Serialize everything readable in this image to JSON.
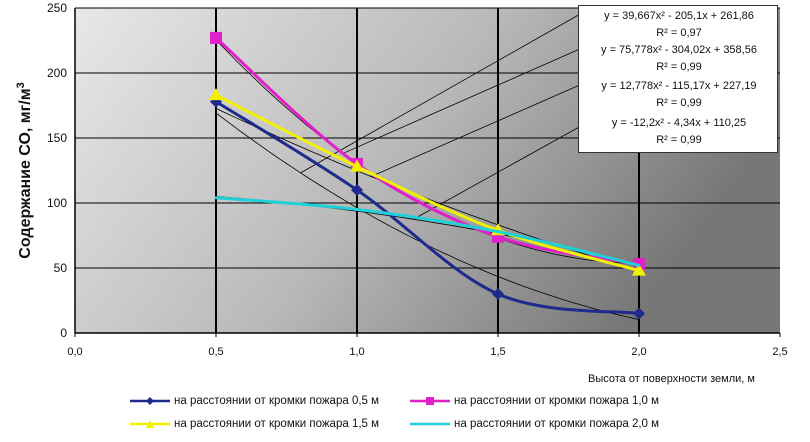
{
  "chart_data": {
    "type": "line",
    "title": "",
    "ylabel": "Содержание СО, мг/м",
    "ylabel_superscript": "3",
    "xlabel": "Высота от поверхности земли, м",
    "xlim": [
      0,
      2.5
    ],
    "ylim": [
      0,
      250
    ],
    "x_ticks": [
      "0,0",
      "0,5",
      "1,0",
      "1,5",
      "2,0",
      "2,5"
    ],
    "x_tick_values": [
      0,
      0.5,
      1.0,
      1.5,
      2.0,
      2.5
    ],
    "y_ticks": [
      "0",
      "50",
      "100",
      "150",
      "200",
      "250"
    ],
    "y_tick_values": [
      0,
      50,
      100,
      150,
      200,
      250
    ],
    "grid": true,
    "legend_position": "bottom",
    "series": [
      {
        "name": "на расстоянии от кромки пожара 0,5 м",
        "x": [
          0.5,
          1.0,
          1.5,
          2.0
        ],
        "values": [
          178,
          110,
          30,
          15
        ],
        "color": "#1f2a8c",
        "marker": "diamond"
      },
      {
        "name": "на расстоянии от кромки пожара 1,0 м",
        "x": [
          0.5,
          1.0,
          1.5,
          2.0
        ],
        "values": [
          227,
          130,
          74,
          53
        ],
        "color": "#e020c8",
        "marker": "square"
      },
      {
        "name": "на расстоянии от кромки пожара 1,5 м",
        "x": [
          0.5,
          1.0,
          1.5,
          2.0
        ],
        "values": [
          183,
          128,
          79,
          48
        ],
        "color": "#f2f200",
        "marker": "triangle"
      },
      {
        "name": "на расстоянии от кромки пожара 2,0 м",
        "x": [
          0.5,
          1.0,
          1.5,
          2.0
        ],
        "values": [
          104,
          95,
          78,
          52
        ],
        "color": "#20d0d8",
        "marker": "none"
      }
    ],
    "trendlines": [
      {
        "equation": "y = 39,667x² - 205,1x + 261,86",
        "r2": "R² = 0,97",
        "a": 39.667,
        "b": -205.1,
        "c": 261.86
      },
      {
        "equation": "y = 75,778x² - 304,02x + 358,56",
        "r2": "R² = 0,99",
        "a": 75.778,
        "b": -304.02,
        "c": 358.56
      },
      {
        "equation": "y = 12,778x² - 115,17x + 227,19",
        "r2": "R² = 0,99",
        "a": 12.778,
        "b": -115.17,
        "c": 227.19
      },
      {
        "equation": "y = -12,2x² - 4,34x + 110,25",
        "r2": "R² = 0,99",
        "a": -12.2,
        "b": -4.34,
        "c": 110.25
      }
    ]
  },
  "colors": {
    "plot_background_light": "#e6e6e6",
    "plot_background_dark": "#7a7a7a",
    "gridline": "#000000",
    "trendline": "#000000"
  }
}
